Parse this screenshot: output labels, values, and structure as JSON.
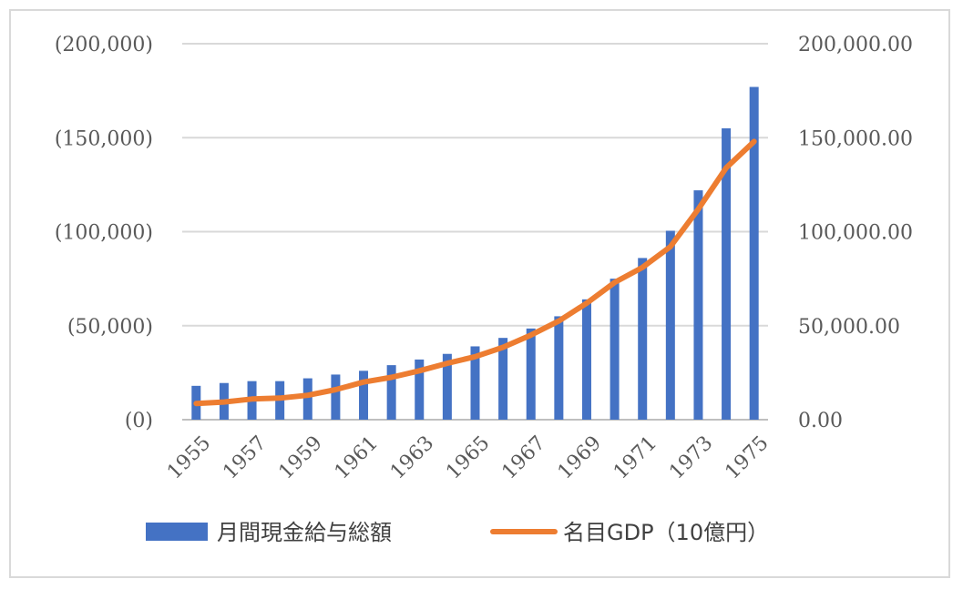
{
  "chart_data": {
    "type": "bar",
    "categories": [
      "1955",
      "1956",
      "1957",
      "1958",
      "1959",
      "1960",
      "1961",
      "1962",
      "1963",
      "1964",
      "1965",
      "1966",
      "1967",
      "1968",
      "1969",
      "1970",
      "1971",
      "1972",
      "1973",
      "1974",
      "1975"
    ],
    "x_tick_labels": [
      "1955",
      "1957",
      "1959",
      "1961",
      "1963",
      "1965",
      "1967",
      "1969",
      "1971",
      "1973",
      "1975"
    ],
    "series": [
      {
        "name": "月間現金給与総額",
        "type": "bar",
        "axis": "left",
        "color": "#4472C4",
        "values": [
          18000,
          19500,
          20500,
          20500,
          22000,
          24000,
          26000,
          29000,
          32000,
          35000,
          39000,
          43500,
          48500,
          55000,
          64000,
          75000,
          86000,
          100500,
          122000,
          155000,
          177000
        ]
      },
      {
        "name": "名目GDP（10億円）",
        "type": "line",
        "axis": "right",
        "color": "#ED7D31",
        "values": [
          8600,
          9400,
          11000,
          11500,
          13000,
          16000,
          20000,
          22500,
          26000,
          30000,
          33500,
          38500,
          45000,
          52500,
          62000,
          73000,
          81000,
          92000,
          112000,
          134000,
          148000
        ]
      }
    ],
    "y_left": {
      "min": 0,
      "max": 200000,
      "ticks": [
        "(0)",
        "(50,000)",
        "(100,000)",
        "(150,000)",
        "(200,000)"
      ]
    },
    "y_right": {
      "min": 0,
      "max": 200000,
      "ticks": [
        "0.00",
        "50,000.00",
        "100,000.00",
        "150,000.00",
        "200,000.00"
      ]
    },
    "grid": true,
    "legend_position": "bottom",
    "title": "",
    "xlabel": "",
    "ylabel": ""
  }
}
